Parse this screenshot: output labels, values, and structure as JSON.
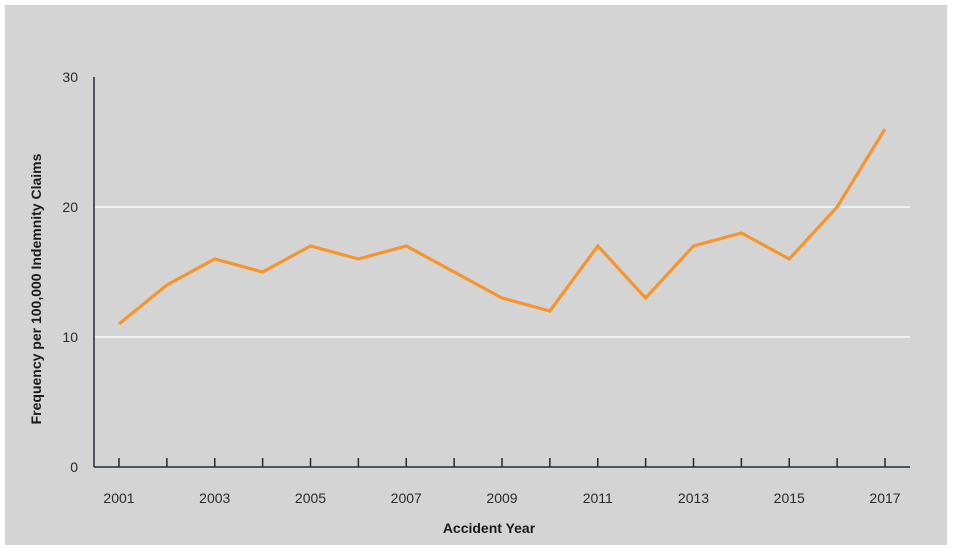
{
  "chart_data": {
    "type": "line",
    "title": "",
    "xlabel": "Accident Year",
    "ylabel": "Frequency per 100,000 Indemnity Claims",
    "x": [
      2001,
      2002,
      2003,
      2004,
      2005,
      2006,
      2007,
      2008,
      2009,
      2010,
      2011,
      2012,
      2013,
      2014,
      2015,
      2016,
      2017
    ],
    "series": [
      {
        "values": [
          11,
          14,
          16,
          15,
          17,
          16,
          17,
          15,
          13,
          12,
          17,
          13,
          17,
          18,
          16,
          20,
          26
        ]
      }
    ],
    "xlim": [
      2001,
      2017
    ],
    "ylim": [
      0,
      30
    ],
    "y_ticks": [
      0,
      10,
      20,
      30
    ],
    "x_tick_labels": [
      "2001",
      "2003",
      "2005",
      "2007",
      "2009",
      "2011",
      "2013",
      "2015",
      "2017"
    ],
    "grid": "horizontal",
    "legend": "none",
    "colors": {
      "line": "#f7952d",
      "background": "#d4d4d4",
      "grid": "#ffffff",
      "axis": "#1f2a3a"
    }
  }
}
